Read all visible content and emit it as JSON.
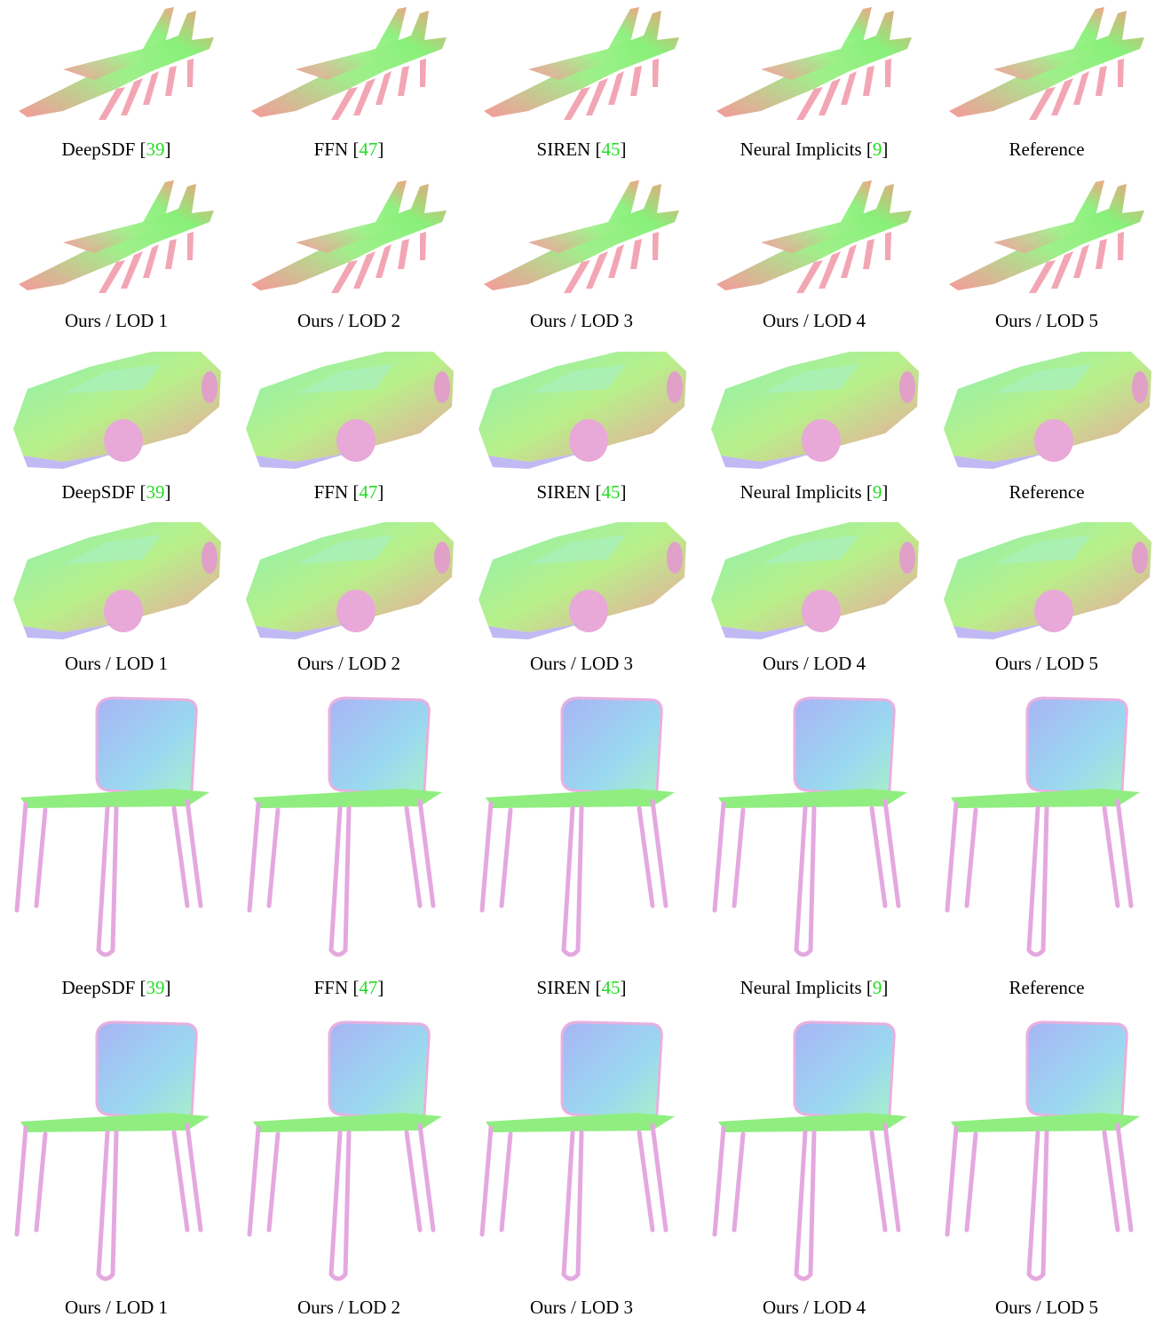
{
  "rows": [
    {
      "shape": "plane",
      "captions": [
        {
          "text": "DeepSDF ",
          "ref": "39"
        },
        {
          "text": "FFN ",
          "ref": "47"
        },
        {
          "text": "SIREN ",
          "ref": "45"
        },
        {
          "text": "Neural Implicits ",
          "ref": "9"
        },
        {
          "text": "Reference",
          "ref": ""
        }
      ]
    },
    {
      "shape": "plane",
      "captions": [
        {
          "text": "Ours / LOD 1",
          "ref": ""
        },
        {
          "text": "Ours / LOD 2",
          "ref": ""
        },
        {
          "text": "Ours / LOD 3",
          "ref": ""
        },
        {
          "text": "Ours / LOD 4",
          "ref": ""
        },
        {
          "text": "Ours / LOD 5",
          "ref": ""
        }
      ]
    },
    {
      "shape": "car",
      "captions": [
        {
          "text": "DeepSDF ",
          "ref": "39"
        },
        {
          "text": "FFN ",
          "ref": "47"
        },
        {
          "text": "SIREN ",
          "ref": "45"
        },
        {
          "text": "Neural Implicits ",
          "ref": "9"
        },
        {
          "text": "Reference",
          "ref": ""
        }
      ]
    },
    {
      "shape": "car",
      "captions": [
        {
          "text": "Ours / LOD 1",
          "ref": ""
        },
        {
          "text": "Ours / LOD 2",
          "ref": ""
        },
        {
          "text": "Ours / LOD 3",
          "ref": ""
        },
        {
          "text": "Ours / LOD 4",
          "ref": ""
        },
        {
          "text": "Ours / LOD 5",
          "ref": ""
        }
      ]
    },
    {
      "shape": "chair",
      "captions": [
        {
          "text": "DeepSDF ",
          "ref": "39"
        },
        {
          "text": "FFN ",
          "ref": "47"
        },
        {
          "text": "SIREN ",
          "ref": "45"
        },
        {
          "text": "Neural Implicits ",
          "ref": "9"
        },
        {
          "text": "Reference",
          "ref": ""
        }
      ]
    },
    {
      "shape": "chair",
      "captions": [
        {
          "text": "Ours / LOD 1",
          "ref": ""
        },
        {
          "text": "Ours / LOD 2",
          "ref": ""
        },
        {
          "text": "Ours / LOD 3",
          "ref": ""
        },
        {
          "text": "Ours / LOD 4",
          "ref": ""
        },
        {
          "text": "Ours / LOD 5",
          "ref": ""
        }
      ]
    }
  ],
  "colors": {
    "ref_link": "#22dd22",
    "normal_green": "#88f07a",
    "normal_pink": "#f59a9a",
    "normal_blue": "#9aa8f5",
    "normal_orange": "#f0b070"
  }
}
